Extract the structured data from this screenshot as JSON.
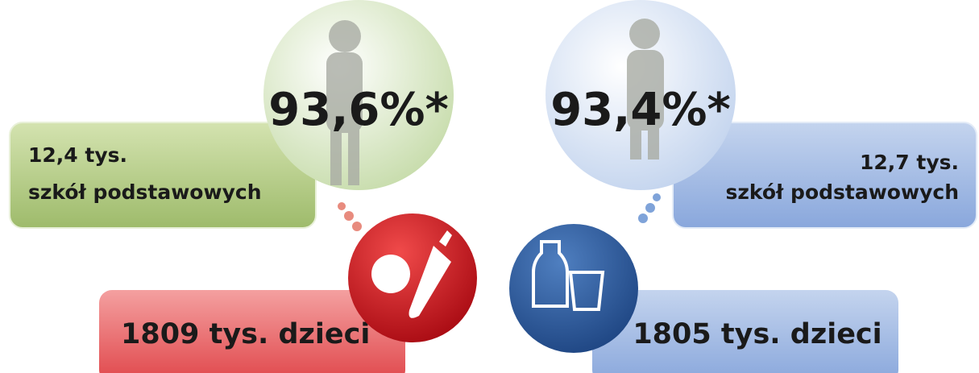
{
  "left": {
    "percent": "93,6%*",
    "schools_count": "12,4 tys.",
    "schools_label": "szkół podstawowych",
    "children": "1809 tys. dzieci"
  },
  "right": {
    "percent": "93,4%*",
    "schools_count": "12,7 tys.",
    "schools_label": "szkół podstawowych",
    "children": "1805 tys. dzieci"
  }
}
